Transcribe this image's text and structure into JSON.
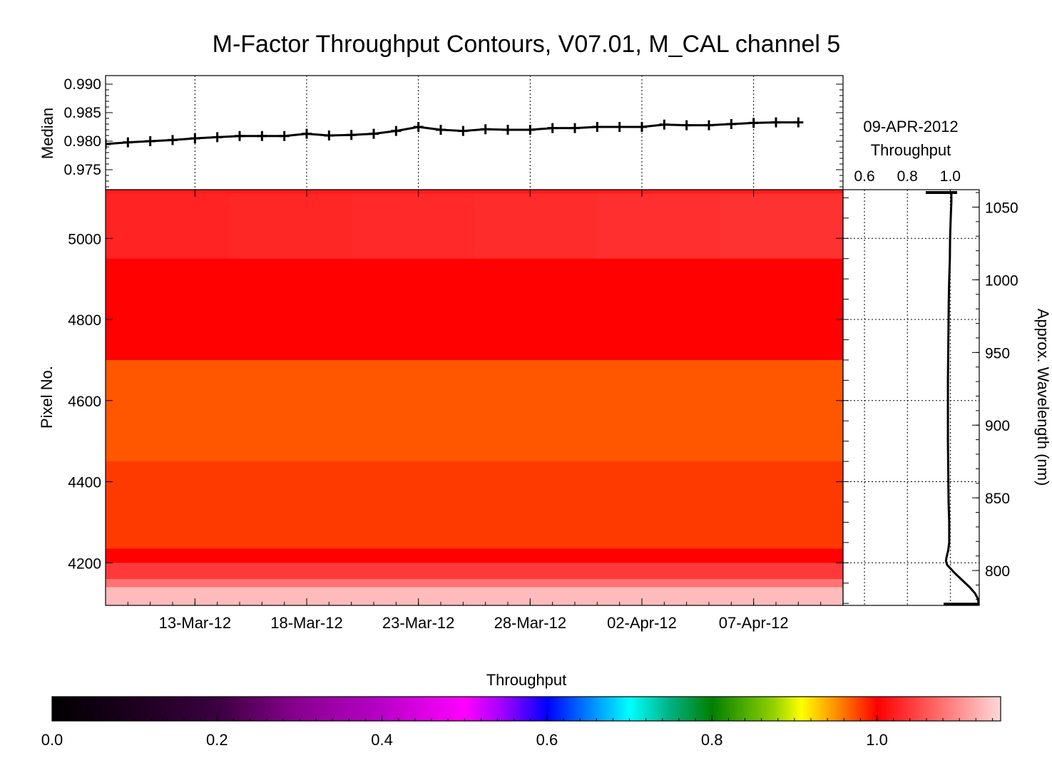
{
  "chart_data": [
    {
      "panel": "median-timeseries",
      "type": "line",
      "title": "M-Factor Throughput Contours, V07.01, M_CAL channel 5",
      "ylabel": "Median",
      "ylim": [
        0.9715,
        0.9915
      ],
      "yticks": [
        "0.990",
        "0.985",
        "0.980",
        "0.975"
      ],
      "ytick_values": [
        0.99,
        0.985,
        0.98,
        0.975
      ],
      "xlim": [
        "2012-03-09",
        "2012-04-11"
      ],
      "xtick_labels": [
        "13-Mar-12",
        "18-Mar-12",
        "23-Mar-12",
        "28-Mar-12",
        "02-Apr-12",
        "07-Apr-12"
      ],
      "xtick_dates": [
        "2012-03-13",
        "2012-03-18",
        "2012-03-23",
        "2012-03-28",
        "2012-04-02",
        "2012-04-07"
      ],
      "grid": true,
      "marker": "plus",
      "x": [
        "2012-03-09",
        "2012-03-10",
        "2012-03-11",
        "2012-03-12",
        "2012-03-13",
        "2012-03-14",
        "2012-03-15",
        "2012-03-16",
        "2012-03-17",
        "2012-03-18",
        "2012-03-19",
        "2012-03-20",
        "2012-03-21",
        "2012-03-22",
        "2012-03-23",
        "2012-03-24",
        "2012-03-25",
        "2012-03-26",
        "2012-03-27",
        "2012-03-28",
        "2012-03-29",
        "2012-03-30",
        "2012-03-31",
        "2012-04-01",
        "2012-04-02",
        "2012-04-03",
        "2012-04-04",
        "2012-04-05",
        "2012-04-06",
        "2012-04-07",
        "2012-04-08",
        "2012-04-09"
      ],
      "y": [
        0.9795,
        0.9798,
        0.98,
        0.9802,
        0.9805,
        0.9807,
        0.9809,
        0.9809,
        0.9809,
        0.9813,
        0.981,
        0.9811,
        0.9813,
        0.9818,
        0.9825,
        0.982,
        0.9818,
        0.9821,
        0.982,
        0.982,
        0.9823,
        0.9823,
        0.9825,
        0.9825,
        0.9825,
        0.9829,
        0.9828,
        0.9828,
        0.983,
        0.9832,
        0.9833,
        0.9833
      ]
    },
    {
      "panel": "throughput-contours",
      "type": "heatmap",
      "ylabel": "Pixel No.",
      "ylim": [
        4095,
        5120
      ],
      "yticks": [
        "5000",
        "4800",
        "4600",
        "4400",
        "4200"
      ],
      "ytick_values": [
        5000,
        4800,
        4600,
        4400,
        4200
      ],
      "xlim": [
        "2012-03-09",
        "2012-04-11"
      ],
      "xtick_labels": [
        "13-Mar-12",
        "18-Mar-12",
        "23-Mar-12",
        "28-Mar-12",
        "02-Apr-12",
        "07-Apr-12"
      ],
      "xtick_dates": [
        "2012-03-13",
        "2012-03-18",
        "2012-03-23",
        "2012-03-28",
        "2012-04-02",
        "2012-04-07"
      ],
      "bands": [
        {
          "from": 5110,
          "to": 5120,
          "throughput": 1.02
        },
        {
          "from": 4950,
          "to": 5110,
          "throughput": 1.025,
          "note_time_trend": 0.01
        },
        {
          "from": 4700,
          "to": 4950,
          "throughput": 1.0
        },
        {
          "from": 4450,
          "to": 4700,
          "throughput": 0.97
        },
        {
          "from": 4235,
          "to": 4450,
          "throughput": 0.98
        },
        {
          "from": 4200,
          "to": 4235,
          "throughput": 1.0
        },
        {
          "from": 4160,
          "to": 4200,
          "throughput": 1.04
        },
        {
          "from": 4140,
          "to": 4160,
          "throughput": 1.08
        },
        {
          "from": 4095,
          "to": 4140,
          "throughput": 1.13
        }
      ]
    },
    {
      "panel": "throughput-profile",
      "type": "line",
      "title_lines": [
        "09-APR-2012",
        "Throughput"
      ],
      "xlim": [
        0.5,
        1.135
      ],
      "xticks": [
        "0.6",
        "0.8",
        "1.0"
      ],
      "xtick_values": [
        0.6,
        0.8,
        1.0
      ],
      "right_ylabel": "Approx. Wavelength (nm)",
      "wavelength_ticks": [
        "1050",
        "1000",
        "950",
        "900",
        "850",
        "800"
      ],
      "wavelength_values": [
        1050,
        1000,
        950,
        900,
        850,
        800
      ],
      "wavelength_range": [
        776,
        1062
      ],
      "pixel_range": [
        4095,
        5120
      ],
      "profile": {
        "pixel": [
          5115,
          5090,
          5050,
          5000,
          4950,
          4900,
          4850,
          4800,
          4750,
          4700,
          4650,
          4600,
          4550,
          4500,
          4450,
          4400,
          4350,
          4300,
          4250,
          4230,
          4215,
          4205,
          4195,
          4175,
          4155,
          4140,
          4125,
          4110,
          4098
        ],
        "throughput": [
          1.005,
          1.005,
          1.002,
          0.999,
          0.998,
          0.995,
          0.993,
          0.992,
          0.991,
          0.99,
          0.989,
          0.989,
          0.989,
          0.989,
          0.99,
          0.991,
          0.992,
          0.995,
          0.995,
          0.99,
          0.983,
          0.98,
          0.985,
          1.02,
          1.06,
          1.09,
          1.115,
          1.13,
          1.132
        ]
      }
    }
  ],
  "colorbar": {
    "label": "Throughput",
    "ticks": [
      "0.0",
      "0.2",
      "0.4",
      "0.6",
      "0.8",
      "1.0"
    ],
    "tick_values": [
      0.0,
      0.2,
      0.4,
      0.6,
      0.8,
      1.0
    ],
    "range": [
      0.0,
      1.15
    ]
  }
}
